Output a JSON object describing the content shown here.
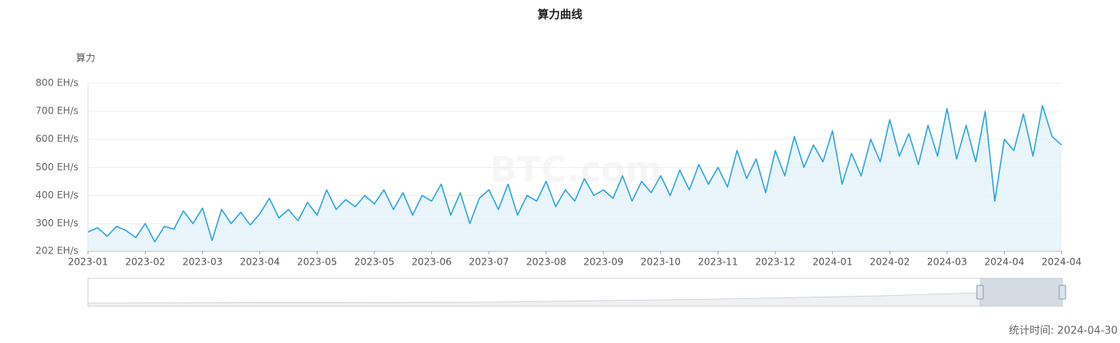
{
  "chart_data": {
    "type": "line",
    "title": "算力曲线",
    "y_axis_label": "算力",
    "watermark": "BTC.com",
    "footer": "统计时间: 2024-04-30",
    "color": "#2ea7e3",
    "area_color": "#e3f3fa",
    "grid": true,
    "categories": [
      "2023-01",
      null,
      null,
      null,
      null,
      null,
      "2023-02",
      null,
      null,
      null,
      null,
      null,
      "2023-03",
      null,
      null,
      null,
      null,
      null,
      "2023-04",
      null,
      null,
      null,
      null,
      null,
      "2023-05",
      null,
      null,
      null,
      null,
      null,
      "2023-05",
      null,
      null,
      null,
      null,
      null,
      "2023-06",
      null,
      null,
      null,
      null,
      null,
      "2023-07",
      null,
      null,
      null,
      null,
      null,
      "2023-08",
      null,
      null,
      null,
      null,
      null,
      "2023-09",
      null,
      null,
      null,
      null,
      null,
      "2023-10",
      null,
      null,
      null,
      null,
      null,
      "2023-11",
      null,
      null,
      null,
      null,
      null,
      "2023-12",
      null,
      null,
      null,
      null,
      null,
      "2024-01",
      null,
      null,
      null,
      null,
      null,
      "2024-02",
      null,
      null,
      null,
      null,
      null,
      "2024-03",
      null,
      null,
      null,
      null,
      null,
      "2024-04",
      null,
      null,
      null,
      null,
      null,
      "2024-04"
    ],
    "values": [
      270,
      285,
      255,
      290,
      275,
      250,
      300,
      235,
      290,
      280,
      345,
      300,
      355,
      240,
      350,
      300,
      340,
      295,
      335,
      390,
      320,
      350,
      310,
      375,
      330,
      420,
      350,
      385,
      360,
      400,
      370,
      420,
      350,
      410,
      330,
      400,
      380,
      440,
      330,
      410,
      300,
      390,
      420,
      350,
      440,
      330,
      400,
      380,
      450,
      360,
      420,
      380,
      460,
      400,
      420,
      390,
      470,
      380,
      450,
      410,
      470,
      400,
      490,
      420,
      510,
      440,
      500,
      430,
      560,
      460,
      530,
      410,
      560,
      470,
      610,
      500,
      580,
      520,
      630,
      440,
      550,
      470,
      600,
      520,
      670,
      540,
      620,
      510,
      650,
      540,
      710,
      530,
      650,
      520,
      700,
      380,
      600,
      560,
      690,
      540,
      720,
      610,
      580
    ],
    "ylim": [
      202,
      800
    ],
    "yticks": [
      {
        "value": 202,
        "label": "202 EH/s"
      },
      {
        "value": 300,
        "label": "300 EH/s"
      },
      {
        "value": 400,
        "label": "400 EH/s"
      },
      {
        "value": 500,
        "label": "500 EH/s"
      },
      {
        "value": 600,
        "label": "600 EH/s"
      },
      {
        "value": 700,
        "label": "700 EH/s"
      },
      {
        "value": 800,
        "label": "800 EH/s"
      }
    ]
  }
}
